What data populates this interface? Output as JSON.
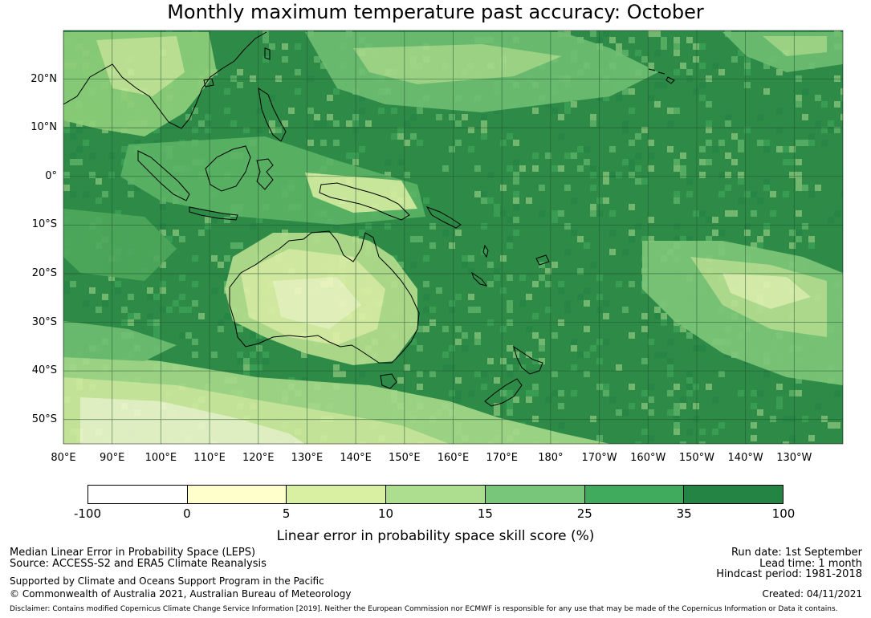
{
  "title": "Monthly maximum temperature past accuracy: October",
  "map": {
    "lat_labels": [
      "20°N",
      "10°N",
      "0°",
      "10°S",
      "20°S",
      "30°S",
      "40°S",
      "50°S"
    ],
    "lat_values": [
      20,
      10,
      0,
      -10,
      -20,
      -30,
      -40,
      -50
    ],
    "lon_labels": [
      "80°E",
      "90°E",
      "100°E",
      "110°E",
      "120°E",
      "130°E",
      "140°E",
      "150°E",
      "160°E",
      "170°E",
      "180°",
      "170°W",
      "160°W",
      "150°W",
      "140°W",
      "130°W"
    ],
    "lon_values": [
      80,
      90,
      100,
      110,
      120,
      130,
      140,
      150,
      160,
      170,
      180,
      190,
      200,
      210,
      220,
      230
    ],
    "lon_range": [
      80,
      240
    ],
    "lat_range": [
      -55,
      30
    ],
    "grid": true,
    "land_color": "none",
    "coastline_color": "#000000"
  },
  "colorbar": {
    "ticks": [
      "-100",
      "0",
      "5",
      "10",
      "15",
      "25",
      "35",
      "100"
    ],
    "colors": [
      "#ffffff",
      "#ffffcc",
      "#d9f0a3",
      "#addd8e",
      "#78c679",
      "#41ab5d",
      "#238443"
    ],
    "label": "Linear error in probability space skill score (%)"
  },
  "footer": {
    "left_line1": "Median Linear Error in Probability Space (LEPS)",
    "left_line2": "Source: ACCESS-S2 and ERA5 Climate Reanalysis",
    "left_line3": "Supported by Climate and Oceans Support Program in the Pacific",
    "left_line4": "© Commonwealth of Australia 2021, Australian Bureau of Meteorology",
    "right_line1": "Run date: 1st September",
    "right_line2": "Lead time: 1 month",
    "right_line3": "Hindcast period: 1981-2018",
    "right_line4": "Created: 04/11/2021",
    "disclaimer": "Disclaimer: Contains modified Copernicus Climate Change Service Information [2019]. Neither the European Commission nor ECMWF is responsible for any use that may be made of the Copernicus Information or Data it contains."
  }
}
